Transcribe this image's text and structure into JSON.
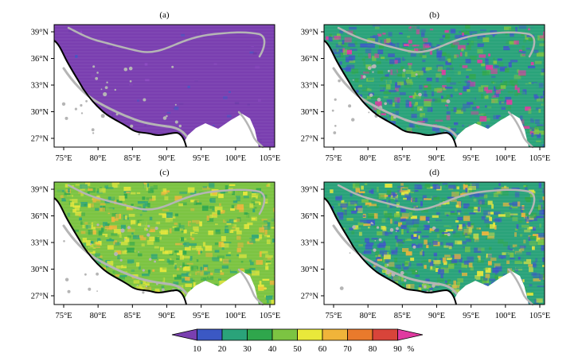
{
  "panels": [
    {
      "label": "(a)",
      "variant": "a"
    },
    {
      "label": "(b)",
      "variant": "b"
    },
    {
      "label": "(c)",
      "variant": "c"
    },
    {
      "label": "(d)",
      "variant": "d"
    }
  ],
  "axes": {
    "lon_ticks": [
      "75°E",
      "80°E",
      "85°E",
      "90°E",
      "95°E",
      "100°E",
      "105°E"
    ],
    "lat_ticks": [
      "39°N",
      "36°N",
      "33°N",
      "30°N",
      "27°N"
    ]
  },
  "colorbar": {
    "labels": [
      "10",
      "20",
      "30",
      "40",
      "50",
      "60",
      "70",
      "80",
      "90"
    ],
    "unit": "%",
    "colors": [
      "#7a3fb0",
      "#3b58c4",
      "#2aa37a",
      "#2fa64c",
      "#7cc442",
      "#e9e83a",
      "#f0b43a",
      "#e97a2c",
      "#d8443a",
      "#e03aa0"
    ]
  },
  "colors": {
    "water_outline": "#b5b5b5",
    "border": "#000000",
    "frame": "#000000"
  }
}
